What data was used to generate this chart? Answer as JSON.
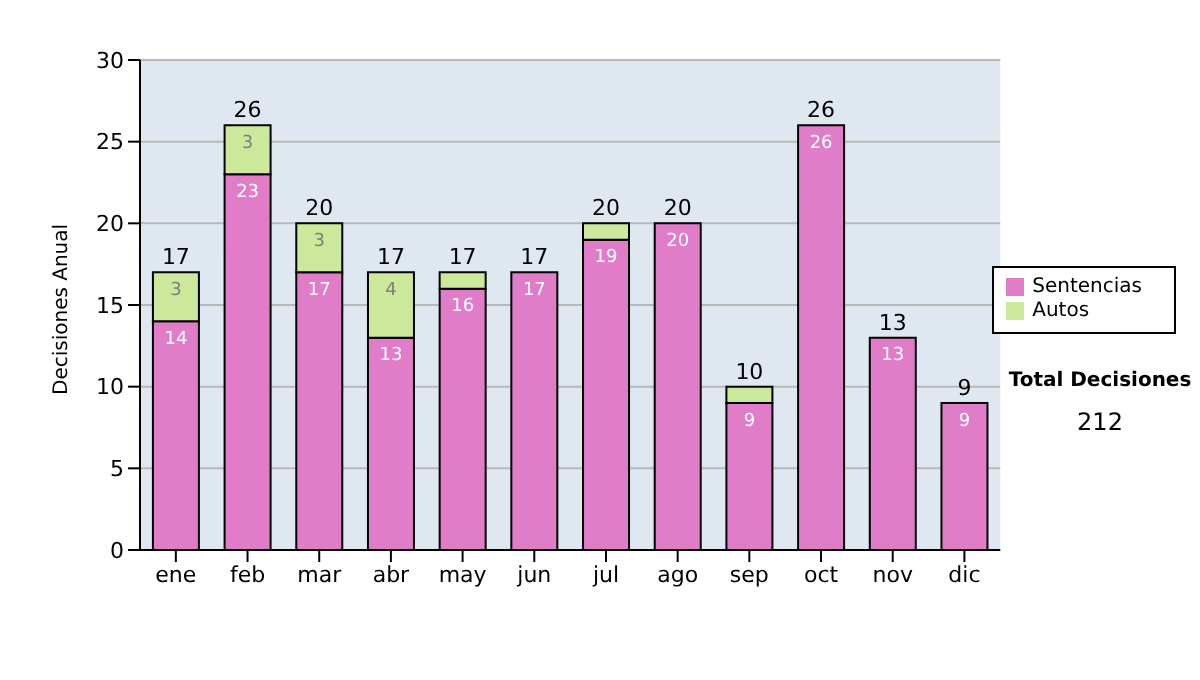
{
  "chart_data": {
    "type": "bar",
    "stacked": true,
    "ylabel": "Decisiones Anual",
    "categories": [
      "ene",
      "feb",
      "mar",
      "abr",
      "may",
      "jun",
      "jul",
      "ago",
      "sep",
      "oct",
      "nov",
      "dic"
    ],
    "series": [
      {
        "name": "Sentencias",
        "color": "#e07cc8",
        "values": [
          14,
          23,
          17,
          13,
          16,
          17,
          19,
          20,
          9,
          26,
          13,
          9
        ],
        "value_labels": [
          "14",
          "23",
          "17",
          "13",
          "16",
          "17",
          "19",
          "20",
          "9",
          "26",
          "13",
          "9"
        ]
      },
      {
        "name": "Autos",
        "color": "#cce89a",
        "values": [
          3,
          3,
          3,
          4,
          1,
          0,
          1,
          0,
          1,
          0,
          0,
          0
        ],
        "value_labels": [
          "3",
          "3",
          "3",
          "4",
          null,
          null,
          null,
          null,
          null,
          null,
          null,
          null
        ]
      }
    ],
    "totals": [
      "17",
      "26",
      "20",
      "17",
      "17",
      "17",
      "20",
      "20",
      "10",
      "26",
      "13",
      "9"
    ],
    "ylim": [
      0,
      30
    ],
    "yticks": [
      0,
      5,
      10,
      15,
      20,
      25,
      30
    ],
    "grid": "y",
    "legend": "right",
    "annotations": [
      "Total Decisiones",
      "212"
    ]
  }
}
